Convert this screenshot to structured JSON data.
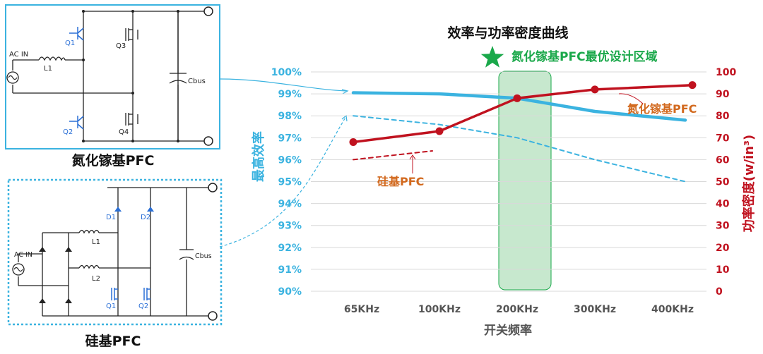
{
  "gan_circuit": {
    "caption": "氮化镓基PFC",
    "ac_in": "AC IN",
    "inductor": "L1",
    "q1": "Q1",
    "q2": "Q2",
    "q3": "Q3",
    "q4": "Q4",
    "cap": "Cbus"
  },
  "si_circuit": {
    "caption": "硅基PFC",
    "ac_in": "AC IN",
    "l1": "L1",
    "l2": "L2",
    "d1": "D1",
    "d2": "D2",
    "q1": "Q1",
    "q2": "Q2",
    "cap": "Cbus"
  },
  "chart_data": {
    "type": "line",
    "title": "效率与功率密度曲线",
    "xlabel": "开关频率",
    "ylabel_left": "最高效率",
    "ylabel_right": "功率密度(w/in³)",
    "categories": [
      "65KHz",
      "100KHz",
      "200KHz",
      "300KHz",
      "400KHz"
    ],
    "y_left_ticks": [
      "100%",
      "99%",
      "98%",
      "97%",
      "96%",
      "95%",
      "94%",
      "93%",
      "92%",
      "91%",
      "90%"
    ],
    "y_right_ticks": [
      "100",
      "90",
      "80",
      "70",
      "60",
      "50",
      "40",
      "30",
      "20",
      "10",
      "0"
    ],
    "ylim_left": [
      90,
      100
    ],
    "ylim_right": [
      0,
      100
    ],
    "series": [
      {
        "name": "氮化镓基PFC",
        "axis": "left",
        "style": "solid",
        "color": "#3bb3e0",
        "values": [
          99.05,
          99.0,
          98.8,
          98.2,
          97.8
        ]
      },
      {
        "name": "硅基PFC",
        "axis": "left",
        "style": "dashed",
        "color": "#3bb3e0",
        "values": [
          98.0,
          97.6,
          97.0,
          96.0,
          95.0
        ]
      },
      {
        "name": "氮化镓基PFC",
        "axis": "right",
        "style": "solid-markers",
        "color": "#c0121f",
        "values": [
          68,
          73,
          88,
          92,
          94
        ]
      },
      {
        "name": "硅基PFC",
        "axis": "right",
        "style": "dashed",
        "color": "#c0121f",
        "x": [
          0,
          1
        ],
        "values": [
          60,
          64
        ]
      }
    ],
    "annotations": {
      "gan_label": "氮化镓基PFC",
      "si_label": "硅基PFC",
      "optimal_region_label": "氮化镓基PFC最优设计区域",
      "optimal_region_category": "200KHz"
    },
    "colors": {
      "left_axis": "#3bb3e0",
      "right_axis": "#c0121f",
      "annotation": "#d2691e",
      "region": "#8fd19e",
      "star": "#1aa84a"
    }
  }
}
